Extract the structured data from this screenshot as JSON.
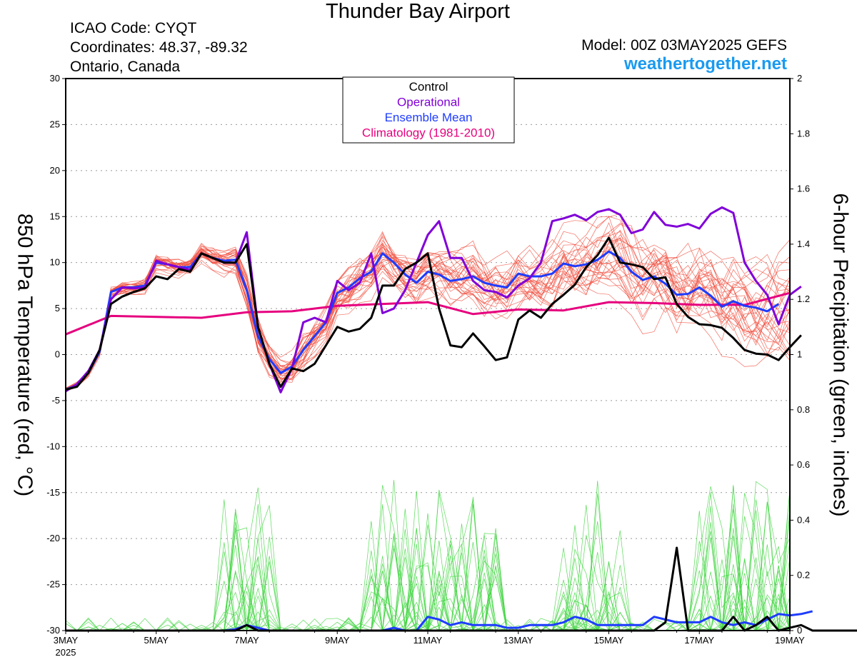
{
  "header": {
    "title": "Thunder Bay Airport",
    "icao": "ICAO Code: CYQT",
    "coordinates": "Coordinates: 48.37, -89.32",
    "region": "Ontario, Canada",
    "model": "Model: 00Z 03MAY2025 GEFS",
    "website": "weathertogether.net"
  },
  "chart_data": {
    "type": "line",
    "title": "Thunder Bay Airport",
    "ylabel_left": "850 hPa Temperature (red, °C)",
    "ylabel_right": "6-hour Precipitation (green, inches)",
    "ylim_left": [
      -30,
      30
    ],
    "ylim_right": [
      0,
      2
    ],
    "xlim_hours": [
      0,
      384
    ],
    "y_ticks_left": [
      "-30",
      "-25",
      "-20",
      "-15",
      "-10",
      "-5",
      "0",
      "5",
      "10",
      "15",
      "20",
      "25",
      "30"
    ],
    "y_ticks_right": [
      "0",
      "0.2",
      "0.4",
      "0.6",
      "0.8",
      "1",
      "1.2",
      "1.4",
      "1.6",
      "1.8",
      "2"
    ],
    "x_ticks": [
      "3MAY",
      "5MAY",
      "7MAY",
      "9MAY",
      "11MAY",
      "13MAY",
      "15MAY",
      "17MAY",
      "19MAY"
    ],
    "x_year": "2025",
    "grid": true,
    "legend": {
      "placement": "top-center",
      "entries": [
        {
          "label": "Control",
          "color": "#000000"
        },
        {
          "label": "Operational",
          "color": "#8000d8"
        },
        {
          "label": "Ensemble Mean",
          "color": "#1e3cff"
        },
        {
          "label": "Climatology (1981-2010)",
          "color": "#e6007e"
        }
      ]
    },
    "colors": {
      "control": "#000000",
      "operational": "#8000d8",
      "ensemble_mean": "#1e3cff",
      "climatology": "#e6007e",
      "members_temperature": "#f04a3a",
      "members_precip": "#3ed53e"
    },
    "series": [
      {
        "name": "Control",
        "axis": "temperature",
        "x_hours_step": 6,
        "values": [
          -3.8,
          -3.5,
          -2,
          0.5,
          5.5,
          6.3,
          6.8,
          7.2,
          8.5,
          8.2,
          9.3,
          9.0,
          11,
          10.5,
          10,
          10,
          12,
          3,
          -1,
          -3.5,
          -1.5,
          -1.8,
          -1,
          1,
          3,
          2.5,
          2.8,
          4,
          7.5,
          7.5,
          9.3,
          10,
          11,
          5,
          1,
          0.8,
          2.3,
          0.9,
          -0.6,
          -0.3,
          3.8,
          4.8,
          4.0,
          5.5,
          6.5,
          7.6,
          9.5,
          10.8,
          12.7,
          10,
          9.8,
          9.5,
          8.2,
          8.4,
          5.5,
          4.1,
          3.3,
          3.2,
          2.9,
          1.8,
          0.5,
          0.1,
          0,
          -0.6,
          0.8,
          2.1
        ]
      },
      {
        "name": "Operational",
        "axis": "temperature",
        "x_hours_step": 6,
        "values": [
          -4,
          -3.2,
          -1.8,
          0.5,
          6,
          7.3,
          7.2,
          7.3,
          10.2,
          9.8,
          9.5,
          9.2,
          11,
          10.5,
          10,
          10,
          13.3,
          3,
          -1,
          -4.1,
          -1.5,
          3.5,
          4.0,
          3.5,
          8,
          7.0,
          7.8,
          11,
          4.5,
          5.0,
          7,
          10,
          13,
          14.5,
          10.5,
          10.5,
          8,
          7.0,
          6.8,
          6.2,
          7.5,
          8.3,
          10,
          14.5,
          14.8,
          15.2,
          14.6,
          15.5,
          15.8,
          15.2,
          13.2,
          13.6,
          15.5,
          14.1,
          13.9,
          14.2,
          13.7,
          15.3,
          16,
          15.4,
          10,
          8,
          6.5,
          3.3,
          6.5,
          7.4
        ]
      },
      {
        "name": "Ensemble Mean",
        "axis": "temperature",
        "x_hours_step": 6,
        "values": [
          -3.8,
          -3.3,
          -2,
          0.3,
          6.8,
          7.3,
          7.3,
          7.5,
          10.0,
          9.8,
          9.5,
          9.5,
          11.0,
          10.5,
          10.2,
          10.3,
          7.0,
          2,
          -0.5,
          -2,
          -1.3,
          0.5,
          2.0,
          3.5,
          6.7,
          7.3,
          8.3,
          9.0,
          11,
          10,
          8.7,
          7.8,
          9,
          8.7,
          8.0,
          8.2,
          8.5,
          7.8,
          7.5,
          7.3,
          8.8,
          8.5,
          8.5,
          8.8,
          9.9,
          9.6,
          9.8,
          10.3,
          11.2,
          10.5,
          9.0,
          8.1,
          8.5,
          7.7,
          6.5,
          6.6,
          7.3,
          6.4,
          5.2,
          5.8,
          5.3,
          5.1,
          4.7,
          5.5
        ]
      },
      {
        "name": "Climatology (1981-2010)",
        "axis": "temperature",
        "points": [
          [
            0,
            2.2
          ],
          [
            24,
            4.2
          ],
          [
            72,
            4.0
          ],
          [
            96,
            4.6
          ],
          [
            120,
            4.7
          ],
          [
            144,
            5.3
          ],
          [
            192,
            5.7
          ],
          [
            216,
            4.4
          ],
          [
            240,
            4.9
          ],
          [
            264,
            4.8
          ],
          [
            288,
            5.7
          ],
          [
            312,
            5.6
          ],
          [
            336,
            5.4
          ],
          [
            360,
            5.4
          ],
          [
            384,
            6.7
          ]
        ]
      },
      {
        "name": "Control",
        "axis": "precip",
        "x_hours_step": 6,
        "values": [
          0,
          0,
          0,
          0,
          0,
          0,
          0,
          0,
          0,
          0,
          0,
          0,
          0,
          0,
          0,
          0,
          0.02,
          0,
          0,
          0,
          0,
          0,
          0,
          0,
          0,
          0,
          0,
          0,
          0,
          0,
          0,
          0,
          0,
          0,
          0,
          0,
          0,
          0,
          0,
          0,
          0,
          0,
          0,
          0,
          0,
          0,
          0,
          0,
          0,
          0,
          0,
          0,
          0,
          0.03,
          0.3,
          0,
          0,
          0,
          0,
          0.05,
          0,
          0.02,
          0.05,
          0,
          0.01,
          0.02,
          0,
          0,
          0,
          0,
          0,
          0,
          0,
          0,
          0,
          0,
          0,
          0
        ]
      },
      {
        "name": "Ensemble Mean",
        "axis": "precip",
        "x_hours_step": 6,
        "values": [
          0,
          0,
          0,
          0,
          0,
          0,
          0,
          0,
          0,
          0,
          0,
          0,
          0,
          0,
          0,
          0.005,
          0.02,
          0.01,
          0,
          0,
          0,
          0,
          0,
          0,
          0,
          0,
          0,
          0,
          0,
          0.01,
          0,
          0,
          0.05,
          0.04,
          0.02,
          0.03,
          0.02,
          0.02,
          0.02,
          0.01,
          0.01,
          0.02,
          0.02,
          0.02,
          0.03,
          0.05,
          0.04,
          0.02,
          0.02,
          0.02,
          0.02,
          0.02,
          0.05,
          0.04,
          0.03,
          0.03,
          0.03,
          0.05,
          0.03,
          0.02,
          0.03,
          0.02,
          0.04,
          0.06,
          0.055,
          0.06,
          0.07
        ]
      }
    ]
  }
}
